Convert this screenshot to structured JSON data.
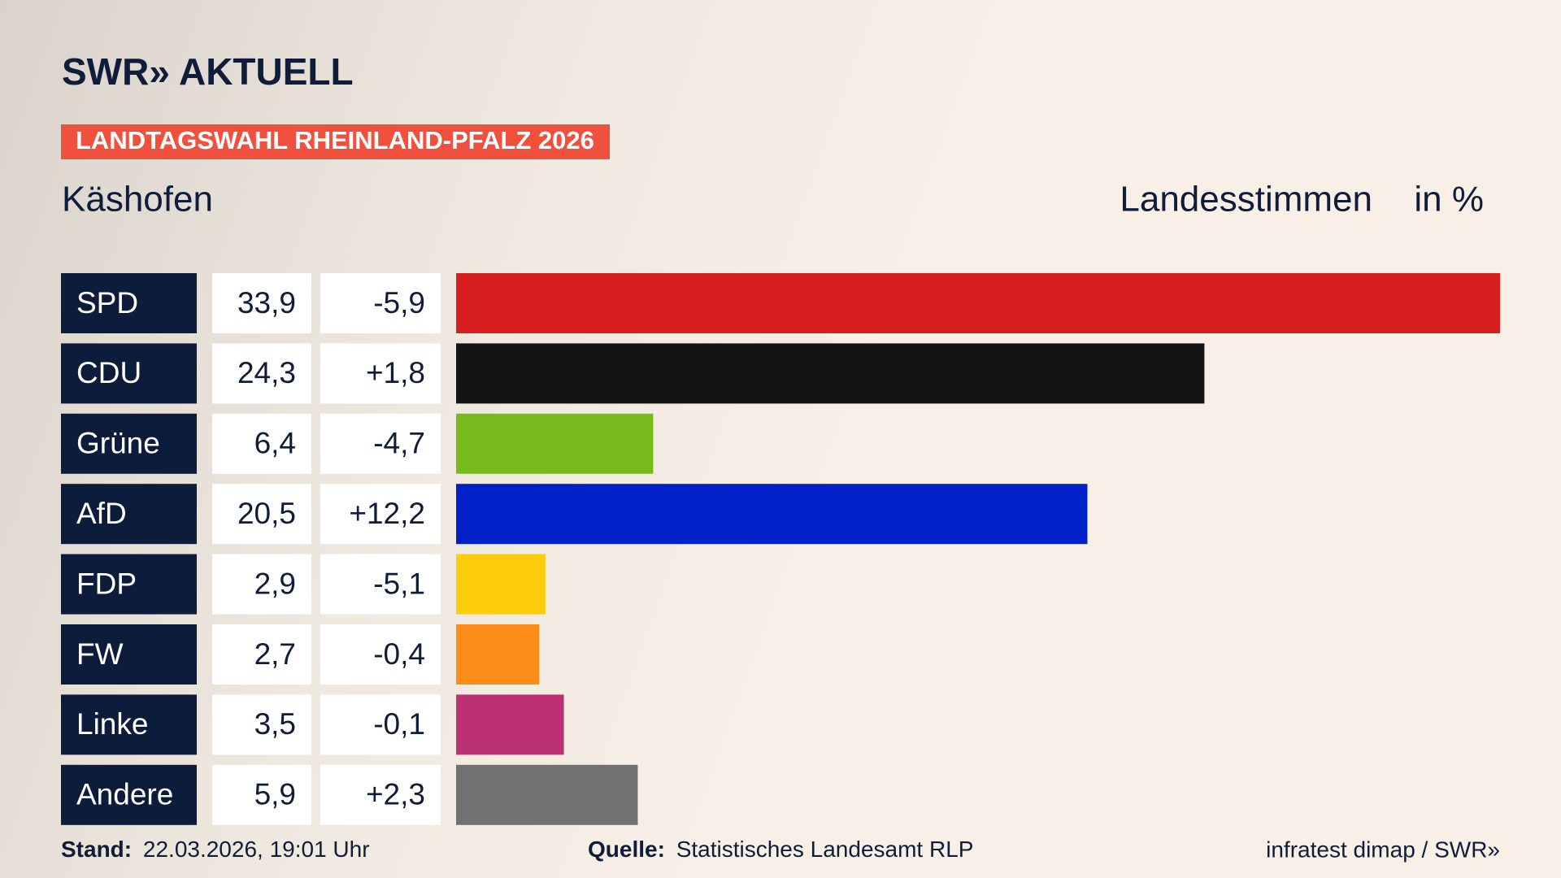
{
  "chart_data": {
    "type": "bar",
    "brand": "SWR» AKTUELL",
    "title": "LANDTAGSWAHL RHEINLAND-PFALZ 2026",
    "subtitle": "Käshofen",
    "measure": "Landesstimmen",
    "unit": "in %",
    "categories": [
      "SPD",
      "CDU",
      "Grüne",
      "AfD",
      "FDP",
      "FW",
      "Linke",
      "Andere"
    ],
    "values": [
      33.9,
      24.3,
      6.4,
      20.5,
      2.9,
      2.7,
      3.5,
      5.9
    ],
    "value_labels": [
      "33,9",
      "24,3",
      "6,4",
      "20,5",
      "2,9",
      "2,7",
      "3,5",
      "5,9"
    ],
    "changes": [
      -5.9,
      1.8,
      -4.7,
      12.2,
      -5.1,
      -0.4,
      -0.1,
      2.3
    ],
    "change_labels": [
      "-5,9",
      "+1,8",
      "-4,7",
      "+12,2",
      "-5,1",
      "-0,4",
      "-0,1",
      "+2,3"
    ],
    "colors": [
      "#d81f1f",
      "#141414",
      "#79bb1d",
      "#0021c8",
      "#fdcd0b",
      "#fc8d18",
      "#bb3174",
      "#707173"
    ],
    "footer": {
      "stand_label": "Stand:",
      "stand": "22.03.2026, 19:01 Uhr",
      "source_label": "Quelle:",
      "source": "Statistisches Landesamt RLP",
      "credit": "infratest dimap / SWR»"
    }
  }
}
